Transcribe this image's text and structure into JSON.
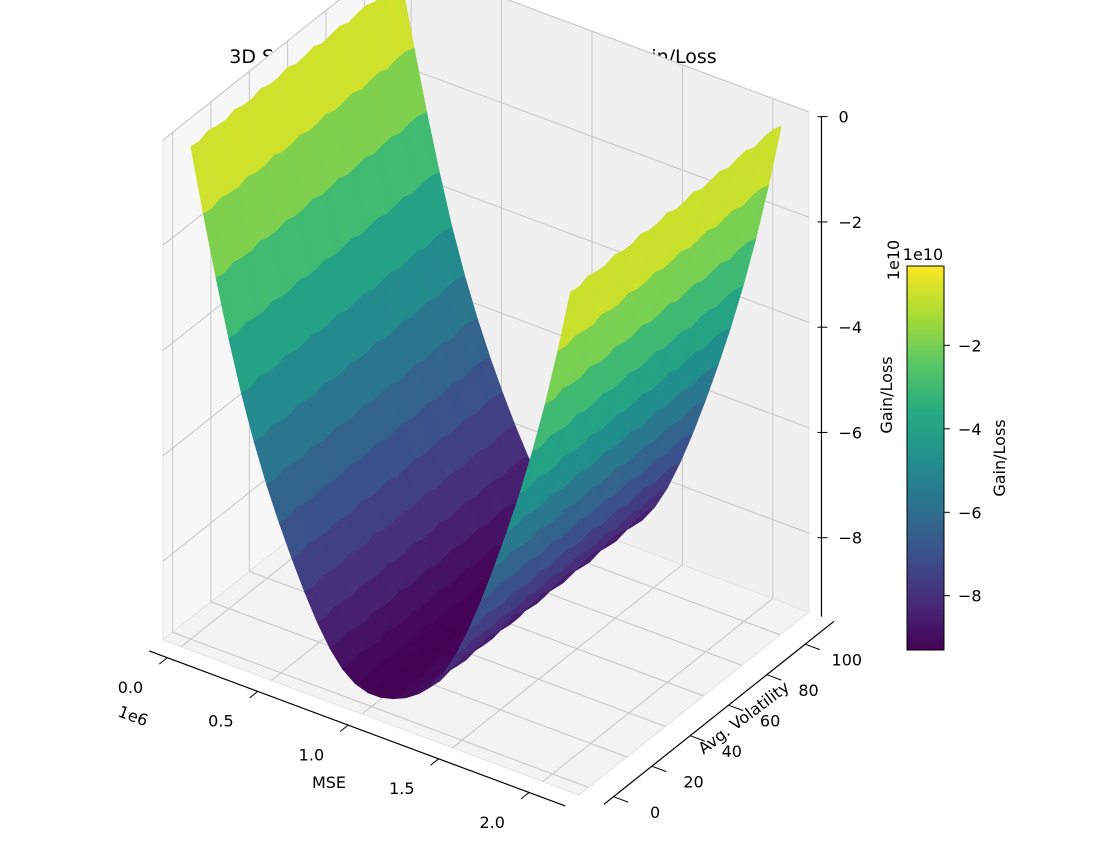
{
  "chart_data": {
    "type": "surface",
    "title": "3D Surface Plot: MSE vs Avg. Volatility vs Gain/Loss",
    "xlabel": "MSE",
    "ylabel": "Avg. Volatility",
    "zlabel": "Gain/Loss",
    "x_scale_label": "1e6",
    "z_scale_label": "1e10",
    "colorbar_label": "Gain/Loss",
    "colorbar_scale_label": "1e10",
    "colormap": "viridis",
    "x_ticks": [
      "0.0",
      "0.5",
      "1.0",
      "1.5",
      "2.0"
    ],
    "y_ticks": [
      "0",
      "20",
      "40",
      "60",
      "80",
      "100"
    ],
    "z_ticks": [
      "0",
      "−2",
      "−4",
      "−6",
      "−8"
    ],
    "colorbar_ticks": [
      "−2",
      "−4",
      "−6",
      "−8"
    ],
    "x_range": [
      -100000,
      2200000
    ],
    "y_range": [
      -5,
      115
    ],
    "z_range": [
      -95000000000,
      0
    ],
    "colorbar_range": [
      -93000000000,
      -1000000000
    ],
    "grid": true,
    "surface": {
      "x_min": 0,
      "x_max": 2100000,
      "y_min": 0,
      "y_max": 110,
      "z_min_approx": -93000000000,
      "z_max_approx": -1000000000,
      "shape": "parabolic bowl along MSE, minimum near MSE = 1.05e6, roughly constant in Avg. Volatility"
    }
  }
}
